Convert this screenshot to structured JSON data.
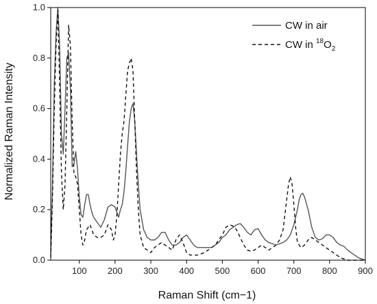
{
  "chart_data": {
    "type": "line",
    "xlabel": "Raman Shift (cm−1)",
    "ylabel": "Normalized Raman Intensity",
    "xlim": [
      20,
      900
    ],
    "ylim": [
      0,
      1.0
    ],
    "xticks": [
      100,
      200,
      300,
      400,
      500,
      600,
      700,
      800,
      900
    ],
    "yticks": [
      0.0,
      0.2,
      0.4,
      0.6,
      0.8,
      1.0
    ],
    "grid": false,
    "legend_position": "top-right",
    "legend": {
      "air_label": "CW in air",
      "o18_prefix": "CW in ",
      "o18_sup": "18",
      "o18_main": "O",
      "o18_sub": "2"
    },
    "series": [
      {
        "name": "CW in air",
        "color": "#555555",
        "dash": "solid",
        "x": [
          20,
          25,
          30,
          35,
          40,
          45,
          50,
          55,
          60,
          65,
          70,
          75,
          80,
          85,
          90,
          95,
          100,
          105,
          110,
          115,
          120,
          125,
          130,
          135,
          140,
          150,
          160,
          170,
          180,
          190,
          200,
          205,
          210,
          215,
          220,
          225,
          230,
          235,
          240,
          245,
          250,
          255,
          260,
          265,
          270,
          280,
          290,
          300,
          310,
          320,
          330,
          340,
          350,
          360,
          370,
          380,
          390,
          400,
          410,
          420,
          430,
          440,
          450,
          460,
          470,
          480,
          490,
          500,
          510,
          520,
          530,
          540,
          550,
          560,
          570,
          580,
          590,
          600,
          610,
          620,
          630,
          640,
          650,
          660,
          670,
          680,
          690,
          700,
          710,
          715,
          720,
          725,
          730,
          740,
          750,
          760,
          770,
          780,
          790,
          800,
          810,
          820,
          830,
          840,
          850,
          860,
          870,
          880,
          890,
          900
        ],
        "y": [
          0.02,
          0.3,
          0.7,
          0.9,
          1.0,
          0.85,
          0.5,
          0.42,
          0.6,
          0.8,
          0.82,
          0.68,
          0.37,
          0.38,
          0.43,
          0.36,
          0.25,
          0.18,
          0.17,
          0.22,
          0.26,
          0.26,
          0.22,
          0.19,
          0.17,
          0.15,
          0.13,
          0.16,
          0.21,
          0.22,
          0.21,
          0.19,
          0.17,
          0.2,
          0.22,
          0.27,
          0.35,
          0.45,
          0.55,
          0.6,
          0.62,
          0.55,
          0.42,
          0.3,
          0.2,
          0.12,
          0.09,
          0.08,
          0.08,
          0.09,
          0.11,
          0.11,
          0.08,
          0.06,
          0.06,
          0.07,
          0.09,
          0.1,
          0.08,
          0.06,
          0.05,
          0.05,
          0.05,
          0.05,
          0.05,
          0.06,
          0.07,
          0.09,
          0.1,
          0.12,
          0.13,
          0.14,
          0.145,
          0.13,
          0.11,
          0.1,
          0.12,
          0.125,
          0.1,
          0.08,
          0.07,
          0.065,
          0.06,
          0.065,
          0.07,
          0.08,
          0.1,
          0.14,
          0.2,
          0.24,
          0.26,
          0.265,
          0.25,
          0.2,
          0.13,
          0.09,
          0.08,
          0.085,
          0.1,
          0.1,
          0.09,
          0.07,
          0.06,
          0.055,
          0.04,
          0.03,
          0.02,
          0.01,
          0.005,
          0.0
        ]
      },
      {
        "name": "CW in 18O2",
        "color": "#111111",
        "dash": "dashed",
        "x": [
          20,
          25,
          30,
          35,
          40,
          45,
          50,
          55,
          60,
          65,
          70,
          75,
          80,
          85,
          90,
          95,
          100,
          105,
          110,
          115,
          120,
          130,
          140,
          150,
          160,
          170,
          180,
          190,
          195,
          200,
          205,
          210,
          215,
          220,
          225,
          230,
          235,
          240,
          245,
          250,
          255,
          260,
          265,
          270,
          280,
          290,
          300,
          310,
          320,
          330,
          340,
          350,
          360,
          370,
          380,
          390,
          400,
          410,
          420,
          430,
          440,
          450,
          460,
          470,
          480,
          490,
          500,
          510,
          520,
          530,
          540,
          550,
          560,
          570,
          580,
          590,
          600,
          610,
          620,
          630,
          640,
          650,
          660,
          670,
          675,
          680,
          685,
          690,
          695,
          700,
          705,
          710,
          720,
          730,
          740,
          750,
          760,
          770,
          780,
          790,
          800,
          810,
          820,
          830,
          840,
          850,
          860,
          870,
          880,
          890,
          900
        ],
        "y": [
          0.01,
          0.25,
          0.6,
          0.85,
          0.99,
          0.7,
          0.35,
          0.2,
          0.3,
          0.6,
          0.93,
          0.85,
          0.55,
          0.34,
          0.33,
          0.3,
          0.2,
          0.1,
          0.06,
          0.08,
          0.12,
          0.14,
          0.1,
          0.09,
          0.09,
          0.1,
          0.14,
          0.12,
          0.08,
          0.1,
          0.18,
          0.3,
          0.42,
          0.5,
          0.55,
          0.65,
          0.75,
          0.78,
          0.8,
          0.75,
          0.55,
          0.35,
          0.2,
          0.1,
          0.05,
          0.04,
          0.03,
          0.05,
          0.06,
          0.07,
          0.06,
          0.05,
          0.04,
          0.08,
          0.1,
          0.07,
          0.03,
          0.02,
          0.02,
          0.02,
          0.025,
          0.03,
          0.04,
          0.05,
          0.06,
          0.08,
          0.1,
          0.13,
          0.14,
          0.135,
          0.12,
          0.09,
          0.06,
          0.04,
          0.035,
          0.04,
          0.05,
          0.06,
          0.05,
          0.04,
          0.05,
          0.06,
          0.08,
          0.12,
          0.18,
          0.24,
          0.3,
          0.33,
          0.3,
          0.22,
          0.13,
          0.07,
          0.05,
          0.06,
          0.08,
          0.09,
          0.08,
          0.07,
          0.06,
          0.05,
          0.04,
          0.03,
          0.02,
          0.01,
          0.005,
          0.0,
          0.0,
          0.0,
          0.0,
          0.0,
          0.0
        ]
      }
    ]
  }
}
